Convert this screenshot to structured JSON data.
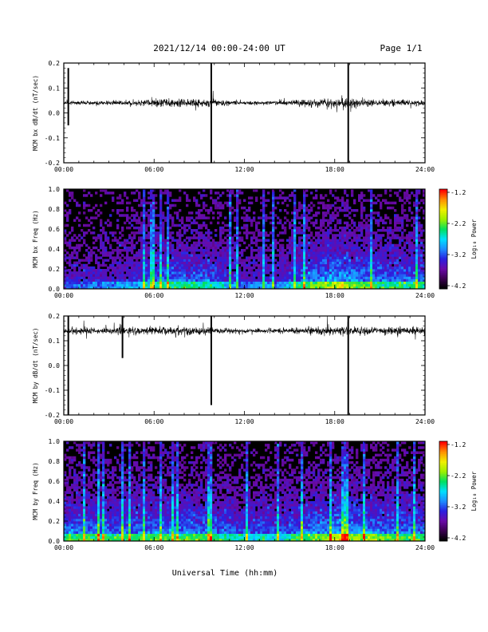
{
  "header": {
    "title": "2021/12/14  00:00-24:00 UT",
    "page": "Page 1/1"
  },
  "footer": {
    "xlabel": "Universal Time (hh:mm)"
  },
  "colors": {
    "trace": "#000000",
    "background": "#ffffff"
  },
  "colormap": [
    "#000000",
    "#3b0050",
    "#6a0aa8",
    "#2a1fe0",
    "#1f8cff",
    "#00e0ff",
    "#00e060",
    "#9cf000",
    "#f0f000",
    "#ff9000",
    "#ff0000"
  ],
  "chart_data": [
    {
      "type": "line",
      "ylabel": "MCM bx dB/dt (nT/sec)",
      "xlim": [
        0,
        24
      ],
      "ylim": [
        -0.2,
        0.2
      ],
      "xticks": [
        "00:00",
        "06:00",
        "12:00",
        "18:00",
        "24:00"
      ],
      "yticks": [
        "0.2",
        "0.1",
        "0.0",
        "-0.1",
        "-0.2"
      ],
      "baseline": 0.04,
      "activity": [
        [
          0,
          0.4
        ],
        [
          4.5,
          0.6
        ],
        [
          6.5,
          1.0
        ],
        [
          9.5,
          1.0
        ],
        [
          12,
          0.45
        ],
        [
          14.5,
          0.5
        ],
        [
          16,
          0.85
        ],
        [
          18.2,
          1.2
        ],
        [
          20,
          0.8
        ],
        [
          24,
          0.7
        ]
      ],
      "spikes": [
        [
          0.3,
          0.18,
          -0.05
        ],
        [
          9.8,
          0.2,
          -0.2
        ],
        [
          18.9,
          0.2,
          -0.2
        ]
      ]
    },
    {
      "type": "heatmap",
      "ylabel": "MCM bx Freq (Hz)",
      "xlim": [
        0,
        24
      ],
      "ylim": [
        0,
        1
      ],
      "xticks": [
        "00:00",
        "06:00",
        "12:00",
        "18:00",
        "24:00"
      ],
      "yticks": [
        "1.0",
        "0.8",
        "0.6",
        "0.4",
        "0.2",
        "0.0"
      ],
      "colorbar": {
        "label": "Log₁₀ Power",
        "ticks": [
          "-1.2",
          "-2.2",
          "-3.2",
          "-4.2"
        ]
      },
      "activity": [
        [
          0,
          0.4
        ],
        [
          4.5,
          0.55
        ],
        [
          6.5,
          0.8
        ],
        [
          9.5,
          0.8
        ],
        [
          12,
          0.45
        ],
        [
          14.5,
          0.5
        ],
        [
          16,
          0.9
        ],
        [
          18.2,
          1.1
        ],
        [
          20,
          0.9
        ],
        [
          24,
          0.8
        ]
      ]
    },
    {
      "type": "line",
      "ylabel": "MCM by dB/dt (nT/sec)",
      "xlim": [
        0,
        24
      ],
      "ylim": [
        -0.2,
        0.2
      ],
      "xticks": [
        "00:00",
        "06:00",
        "12:00",
        "18:00",
        "24:00"
      ],
      "yticks": [
        "0.2",
        "0.1",
        "0.0",
        "-0.1",
        "-0.2"
      ],
      "baseline": 0.14,
      "activity": [
        [
          0,
          0.7
        ],
        [
          3,
          0.8
        ],
        [
          6.5,
          1.0
        ],
        [
          9.5,
          0.9
        ],
        [
          12,
          0.5
        ],
        [
          14.5,
          0.6
        ],
        [
          16,
          0.8
        ],
        [
          18.2,
          1.1
        ],
        [
          20,
          0.9
        ],
        [
          24,
          0.8
        ]
      ],
      "spikes": [
        [
          0.3,
          0.2,
          -0.2
        ],
        [
          3.9,
          0.2,
          0.03
        ],
        [
          9.8,
          0.2,
          -0.16
        ],
        [
          18.9,
          0.2,
          -0.2
        ]
      ]
    },
    {
      "type": "heatmap",
      "ylabel": "MCM by Freq (Hz)",
      "xlim": [
        0,
        24
      ],
      "ylim": [
        0,
        1
      ],
      "xticks": [
        "00:00",
        "06:00",
        "12:00",
        "18:00",
        "24:00"
      ],
      "yticks": [
        "1.0",
        "0.8",
        "0.6",
        "0.4",
        "0.2",
        "0.0"
      ],
      "colorbar": {
        "label": "Log₁₀ Power",
        "ticks": [
          "-1.2",
          "-2.2",
          "-3.2",
          "-4.2"
        ]
      },
      "activity": [
        [
          0,
          0.9
        ],
        [
          3,
          0.85
        ],
        [
          6.5,
          0.9
        ],
        [
          9.5,
          0.9
        ],
        [
          12,
          0.7
        ],
        [
          14.5,
          0.7
        ],
        [
          16,
          0.9
        ],
        [
          18.2,
          1.1
        ],
        [
          20,
          1.0
        ],
        [
          24,
          0.85
        ]
      ]
    }
  ]
}
